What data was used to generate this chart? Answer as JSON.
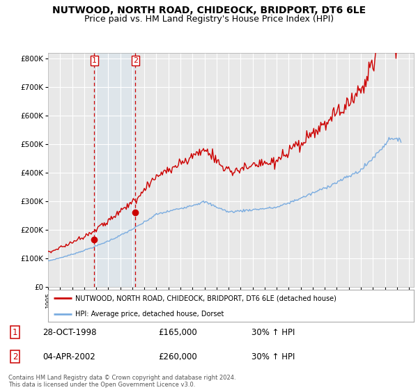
{
  "title": "NUTWOOD, NORTH ROAD, CHIDEOCK, BRIDPORT, DT6 6LE",
  "subtitle": "Price paid vs. HM Land Registry's House Price Index (HPI)",
  "title_fontsize": 10,
  "subtitle_fontsize": 9,
  "ylabel_ticks": [
    "£0",
    "£100K",
    "£200K",
    "£300K",
    "£400K",
    "£500K",
    "£600K",
    "£700K",
    "£800K"
  ],
  "ytick_values": [
    0,
    100000,
    200000,
    300000,
    400000,
    500000,
    600000,
    700000,
    800000
  ],
  "ylim": [
    0,
    820000
  ],
  "xlim_start": 1995.0,
  "xlim_end": 2025.4,
  "background_color": "#ffffff",
  "plot_bg_color": "#e8e8e8",
  "grid_color": "#ffffff",
  "sale1_x": 1998.83,
  "sale1_y": 165000,
  "sale2_x": 2002.25,
  "sale2_y": 260000,
  "legend_entry1": "NUTWOOD, NORTH ROAD, CHIDEOCK, BRIDPORT, DT6 6LE (detached house)",
  "legend_entry2": "HPI: Average price, detached house, Dorset",
  "table_row1": [
    "1",
    "28-OCT-1998",
    "£165,000",
    "30% ↑ HPI"
  ],
  "table_row2": [
    "2",
    "04-APR-2002",
    "£260,000",
    "30% ↑ HPI"
  ],
  "footer": "Contains HM Land Registry data © Crown copyright and database right 2024.\nThis data is licensed under the Open Government Licence v3.0.",
  "red_color": "#cc0000",
  "blue_color": "#7aace0",
  "vline_color": "#cc0000",
  "span_color": "#cce0f0"
}
